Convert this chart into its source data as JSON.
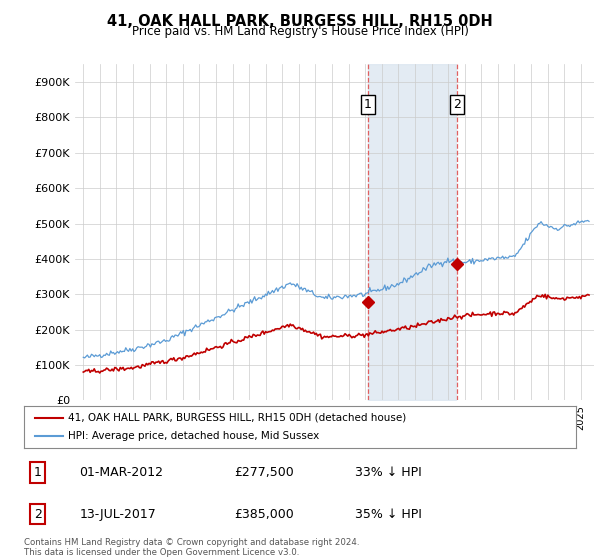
{
  "title": "41, OAK HALL PARK, BURGESS HILL, RH15 0DH",
  "subtitle": "Price paid vs. HM Land Registry's House Price Index (HPI)",
  "ylim": [
    0,
    950000
  ],
  "yticks": [
    0,
    100000,
    200000,
    300000,
    400000,
    500000,
    600000,
    700000,
    800000,
    900000
  ],
  "ytick_labels": [
    "£0",
    "£100K",
    "£200K",
    "£300K",
    "£400K",
    "£500K",
    "£600K",
    "£700K",
    "£800K",
    "£900K"
  ],
  "sale1_date": 2012.17,
  "sale1_price": 277500,
  "sale2_date": 2017.54,
  "sale2_price": 385000,
  "hpi_color": "#5b9bd5",
  "price_color": "#c00000",
  "shade_color": "#dce6f1",
  "vline_color": "#e06060",
  "legend_entry1": "41, OAK HALL PARK, BURGESS HILL, RH15 0DH (detached house)",
  "legend_entry2": "HPI: Average price, detached house, Mid Sussex",
  "table_row1": [
    "1",
    "01-MAR-2012",
    "£277,500",
    "33% ↓ HPI"
  ],
  "table_row2": [
    "2",
    "13-JUL-2017",
    "£385,000",
    "35% ↓ HPI"
  ],
  "footer": "Contains HM Land Registry data © Crown copyright and database right 2024.\nThis data is licensed under the Open Government Licence v3.0.",
  "background_color": "#ffffff",
  "grid_color": "#cccccc"
}
